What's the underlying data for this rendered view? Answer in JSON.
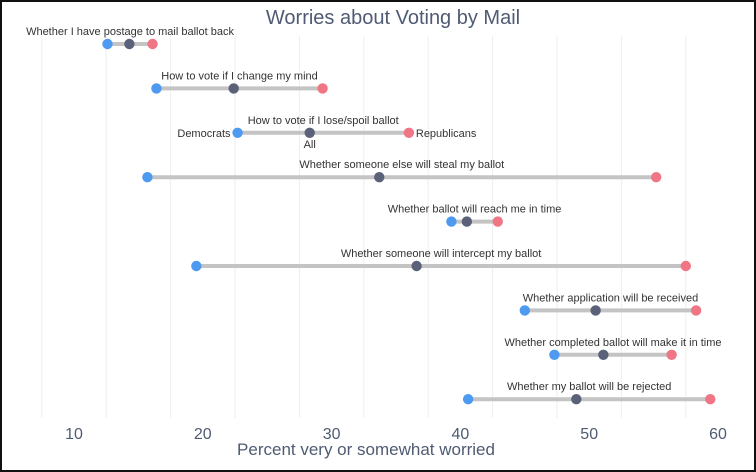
{
  "chart_data": {
    "type": "dumbbell",
    "title": "Worries about Voting by Mail",
    "xlabel": "Percent very or somewhat worried",
    "ylabel": "",
    "xlim": [
      10,
      60
    ],
    "xticks": [
      10,
      20,
      30,
      40,
      50,
      60
    ],
    "xtick_labels": [
      "10",
      "20",
      "30",
      "40",
      "50",
      "60"
    ],
    "grid": true,
    "series": [
      {
        "name": "Democrats",
        "color": "#4e9af1"
      },
      {
        "name": "All",
        "color": "#5b6178"
      },
      {
        "name": "Republicans",
        "color": "#f07585"
      }
    ],
    "legend_annotations": {
      "democrats": "Democrats",
      "all": "All",
      "republicans": "Republicans",
      "row": 2
    },
    "rows": [
      {
        "label": "Whether I have postage to mail ballot back",
        "democrats": 12.6,
        "all": 14.3,
        "republicans": 16.1
      },
      {
        "label": "How to vote if I change my mind",
        "democrats": 16.4,
        "all": 22.4,
        "republicans": 29.3
      },
      {
        "label": "How to vote if I lose/spoil ballot",
        "democrats": 22.7,
        "all": 28.3,
        "republicans": 36.0
      },
      {
        "label": "Whether someone else will steal my ballot",
        "democrats": 15.7,
        "all": 33.7,
        "republicans": 55.2
      },
      {
        "label": "Whether ballot will reach me in time",
        "democrats": 39.3,
        "all": 40.5,
        "republicans": 42.9
      },
      {
        "label": "Whether someone will intercept my ballot",
        "democrats": 19.5,
        "all": 36.6,
        "republicans": 57.5
      },
      {
        "label": "Whether application will be received",
        "democrats": 45.0,
        "all": 50.5,
        "republicans": 58.3
      },
      {
        "label": "Whether completed ballot will make it in time",
        "democrats": 47.3,
        "all": 51.1,
        "republicans": 56.4
      },
      {
        "label": "Whether my ballot will be rejected",
        "democrats": 40.6,
        "all": 49.0,
        "republicans": 59.4
      }
    ]
  }
}
